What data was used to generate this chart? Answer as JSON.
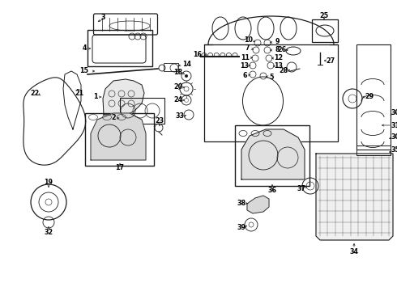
{
  "background_color": "#ffffff",
  "fig_width": 4.9,
  "fig_height": 3.6,
  "dpi": 100,
  "line_color": "#1a1a1a",
  "text_color": "#000000",
  "label_fontsize": 5.8
}
